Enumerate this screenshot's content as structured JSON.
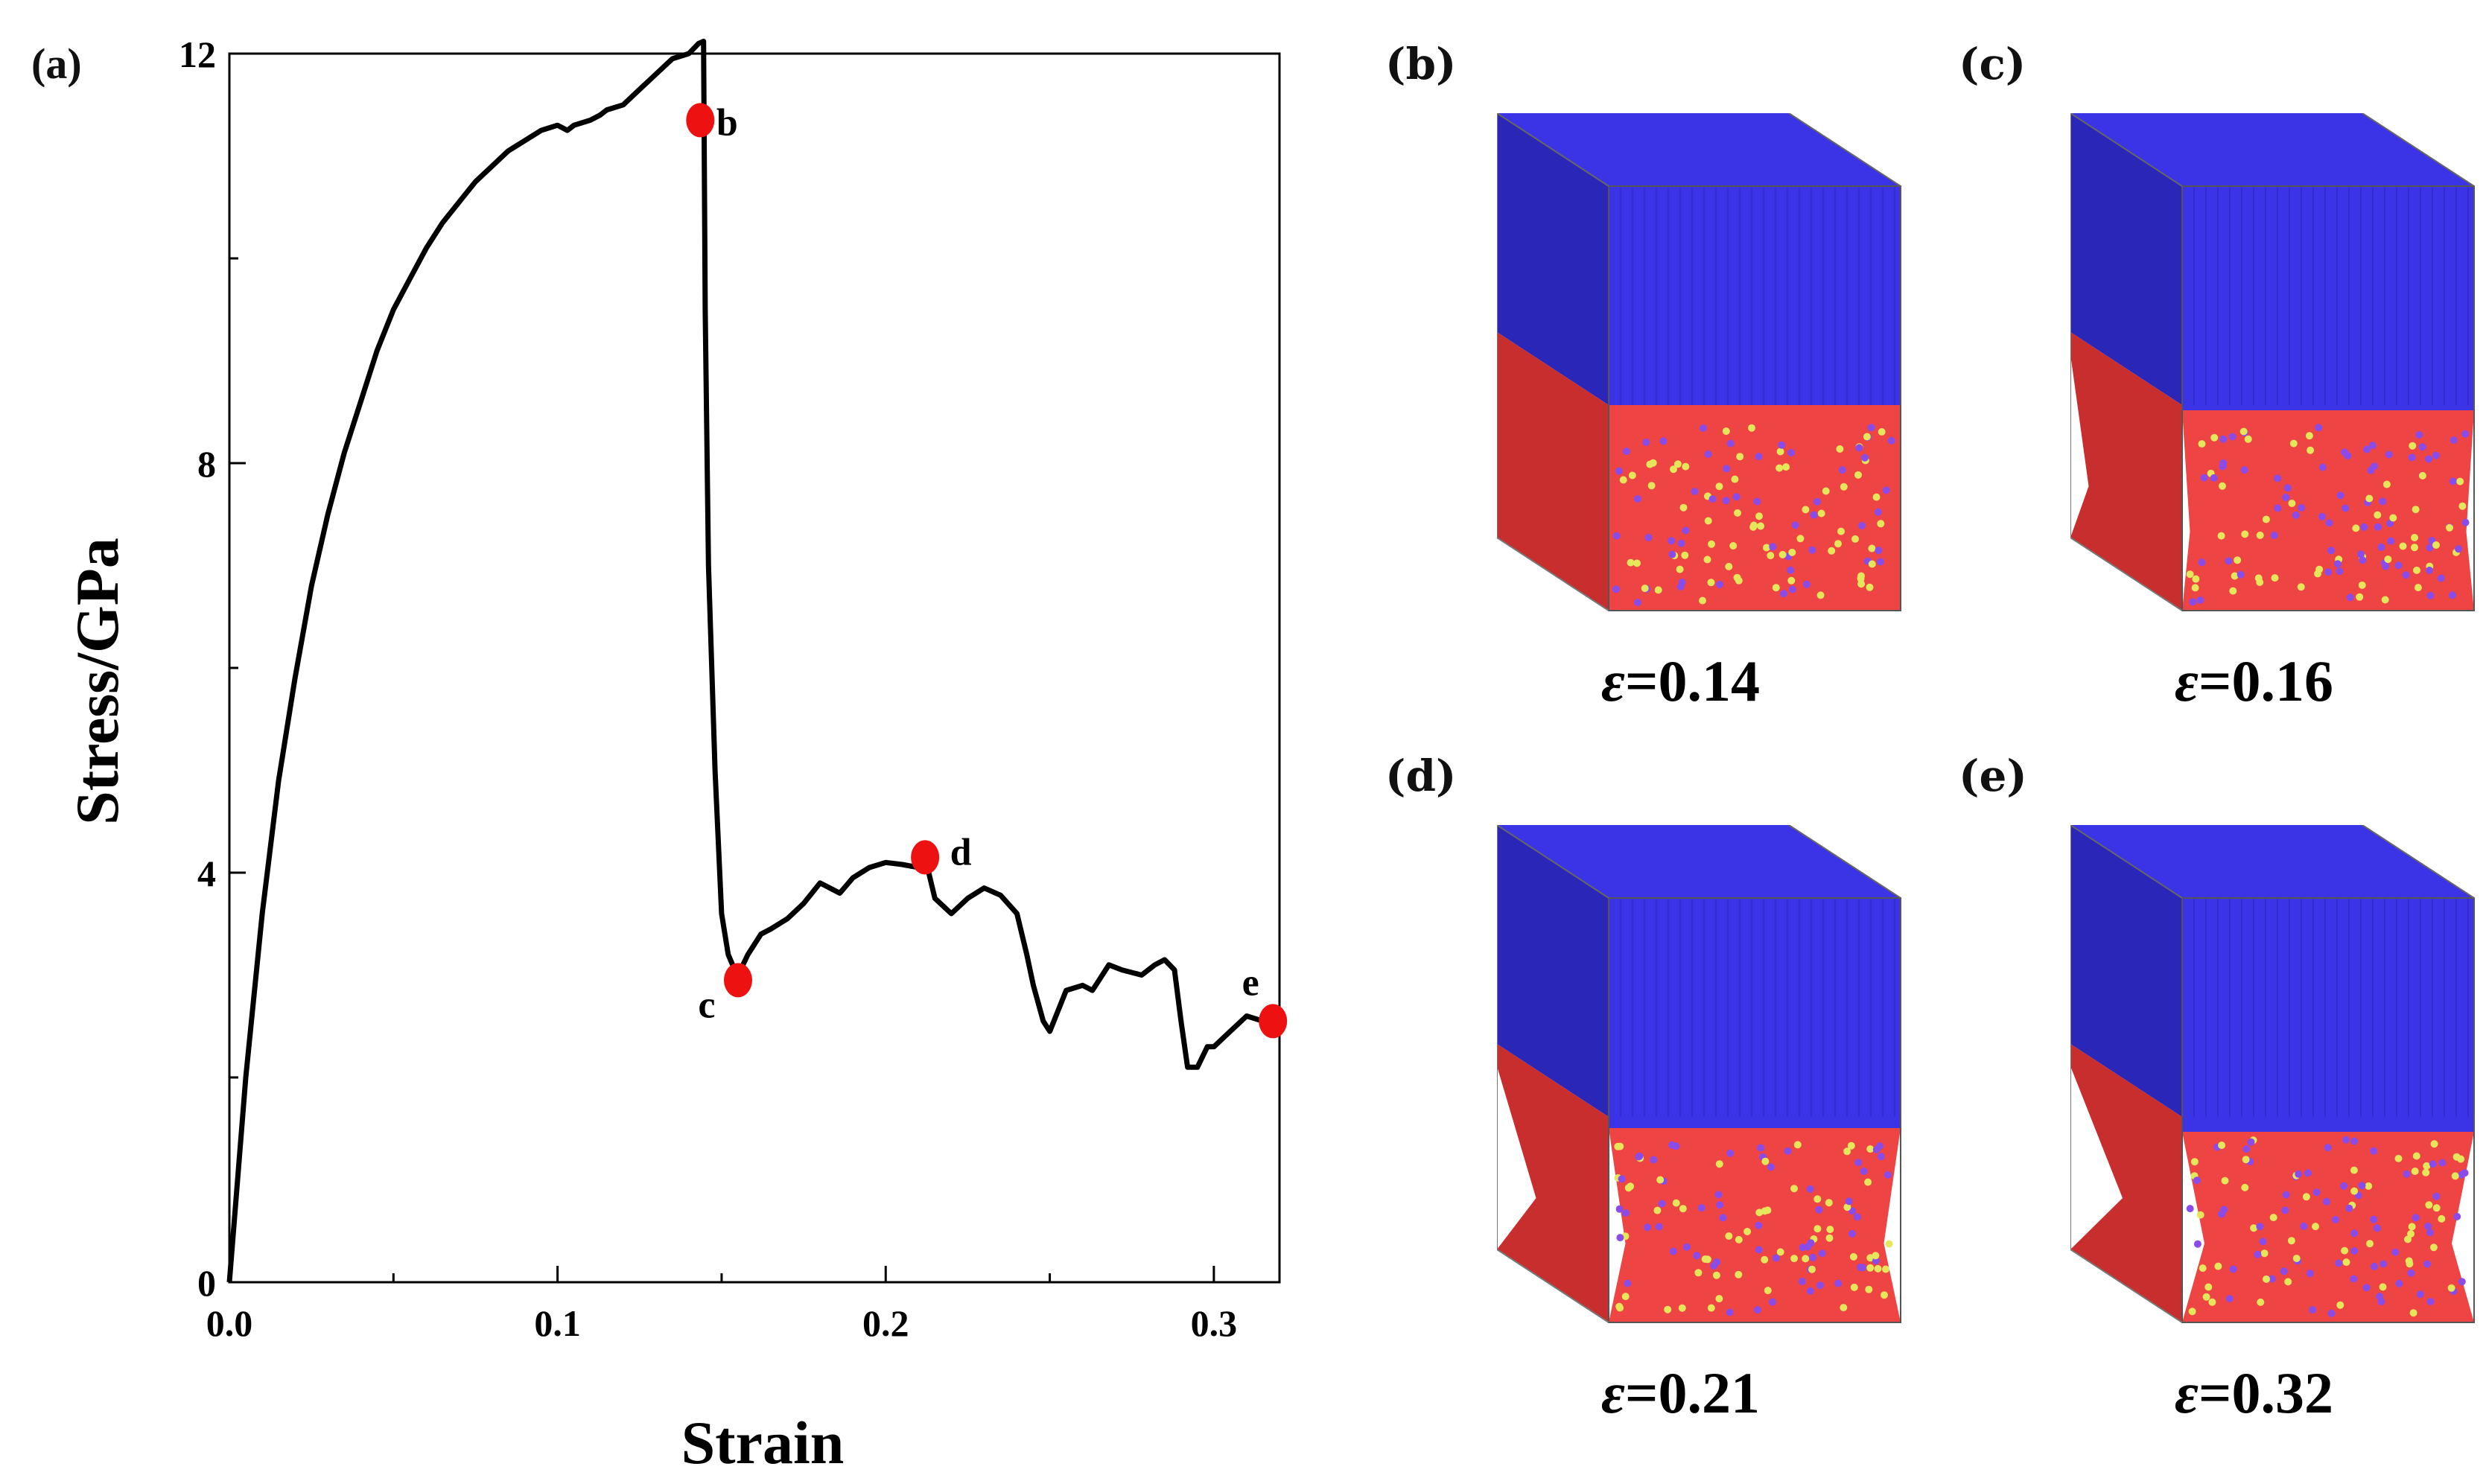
{
  "chart_data": {
    "type": "line",
    "panel_label": "(a)",
    "xlabel": "Strain",
    "ylabel": "Stress/GPa",
    "xlim": [
      0.0,
      0.32
    ],
    "ylim": [
      0,
      12
    ],
    "xticks": [
      0.0,
      0.1,
      0.2,
      0.3
    ],
    "xtick_labels": [
      "0.0",
      "0.1",
      "0.2",
      "0.3"
    ],
    "yticks": [
      0,
      4,
      8,
      12
    ],
    "ytick_labels": [
      "0",
      "4",
      "8",
      "12"
    ],
    "grid": false,
    "series": [
      {
        "name": "stress-strain",
        "color": "#000000",
        "x": [
          0.0,
          0.005,
          0.01,
          0.015,
          0.02,
          0.025,
          0.03,
          0.035,
          0.04,
          0.045,
          0.05,
          0.055,
          0.06,
          0.065,
          0.07,
          0.075,
          0.08,
          0.085,
          0.09,
          0.095,
          0.1,
          0.103,
          0.105,
          0.11,
          0.113,
          0.115,
          0.12,
          0.125,
          0.13,
          0.135,
          0.14,
          0.143,
          0.1445,
          0.145,
          0.146,
          0.148,
          0.15,
          0.152,
          0.154,
          0.155,
          0.158,
          0.162,
          0.165,
          0.17,
          0.175,
          0.18,
          0.183,
          0.186,
          0.19,
          0.195,
          0.2,
          0.205,
          0.21,
          0.212,
          0.215,
          0.22,
          0.225,
          0.23,
          0.235,
          0.24,
          0.243,
          0.245,
          0.248,
          0.25,
          0.255,
          0.26,
          0.263,
          0.265,
          0.268,
          0.272,
          0.278,
          0.282,
          0.285,
          0.288,
          0.29,
          0.292,
          0.295,
          0.298,
          0.3,
          0.305,
          0.31,
          0.315,
          0.318
        ],
        "y": [
          0.0,
          2.0,
          3.6,
          4.9,
          5.9,
          6.8,
          7.5,
          8.1,
          8.6,
          9.1,
          9.5,
          9.8,
          10.1,
          10.35,
          10.55,
          10.75,
          10.9,
          11.05,
          11.15,
          11.25,
          11.3,
          11.25,
          11.3,
          11.35,
          11.4,
          11.45,
          11.5,
          11.65,
          11.8,
          11.95,
          12.0,
          12.1,
          12.12,
          9.5,
          7.0,
          5.0,
          3.6,
          3.2,
          3.05,
          3.0,
          3.2,
          3.4,
          3.45,
          3.55,
          3.7,
          3.9,
          3.85,
          3.8,
          3.95,
          4.05,
          4.1,
          4.08,
          4.05,
          4.15,
          3.75,
          3.6,
          3.75,
          3.85,
          3.78,
          3.6,
          3.2,
          2.9,
          2.55,
          2.45,
          2.85,
          2.9,
          2.85,
          2.95,
          3.1,
          3.05,
          3.0,
          3.1,
          3.15,
          3.05,
          2.55,
          2.1,
          2.1,
          2.3,
          2.3,
          2.45,
          2.6,
          2.55,
          2.5
        ]
      }
    ],
    "marker_color": "#ee1111",
    "markers": [
      {
        "label": "b",
        "x": 0.1435,
        "y": 11.35
      },
      {
        "label": "c",
        "x": 0.155,
        "y": 2.95
      },
      {
        "label": "d",
        "x": 0.212,
        "y": 4.15
      },
      {
        "label": "e",
        "x": 0.318,
        "y": 2.55
      }
    ]
  },
  "snapshots": [
    {
      "label": "(b)",
      "strain": "=0.14",
      "symbol": "ε",
      "neck": 0
    },
    {
      "label": "(c)",
      "strain": "=0.16",
      "symbol": "ε",
      "neck": 0.35
    },
    {
      "label": "(d)",
      "strain": "=0.21",
      "symbol": "ε",
      "neck": 0.75
    },
    {
      "label": "(e)",
      "strain": "=0.32",
      "symbol": "ε",
      "neck": 1
    }
  ],
  "colors": {
    "top_layer": "#3b34e6",
    "top_layer_dark": "#2a26b8",
    "bottom_layer": "#ee4444",
    "bottom_layer_dark": "#c82e2e",
    "dot_purple": "#8a4ce8",
    "dot_yellow": "#e6e65a"
  }
}
